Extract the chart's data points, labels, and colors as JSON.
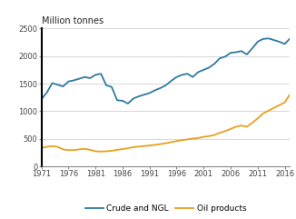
{
  "title": "Million tonnes",
  "xlim": [
    1971,
    2017
  ],
  "ylim": [
    0,
    2500
  ],
  "yticks": [
    0,
    500,
    1000,
    1500,
    2000,
    2500
  ],
  "xticks": [
    1971,
    1976,
    1981,
    1986,
    1991,
    1996,
    2001,
    2006,
    2011,
    2016
  ],
  "crude_color": "#2e7b9e",
  "oil_color": "#e8a020",
  "bg_color": "#ffffff",
  "grid_color": "#c8c8c8",
  "crude_label": "Crude and NGL",
  "oil_label": "Oil products",
  "crude_years": [
    1971,
    1972,
    1973,
    1974,
    1975,
    1976,
    1977,
    1978,
    1979,
    1980,
    1981,
    1982,
    1983,
    1984,
    1985,
    1986,
    1987,
    1988,
    1989,
    1990,
    1991,
    1992,
    1993,
    1994,
    1995,
    1996,
    1997,
    1998,
    1999,
    2000,
    2001,
    2002,
    2003,
    2004,
    2005,
    2006,
    2007,
    2008,
    2009,
    2010,
    2011,
    2012,
    2013,
    2014,
    2015,
    2016,
    2017
  ],
  "crude_values": [
    1220,
    1340,
    1510,
    1480,
    1450,
    1540,
    1560,
    1590,
    1620,
    1600,
    1660,
    1680,
    1470,
    1440,
    1200,
    1190,
    1140,
    1230,
    1270,
    1300,
    1330,
    1380,
    1420,
    1470,
    1550,
    1620,
    1660,
    1680,
    1620,
    1710,
    1750,
    1790,
    1860,
    1960,
    1990,
    2060,
    2070,
    2090,
    2030,
    2140,
    2260,
    2310,
    2320,
    2290,
    2260,
    2220,
    2320
  ],
  "oil_years": [
    1971,
    1972,
    1973,
    1974,
    1975,
    1976,
    1977,
    1978,
    1979,
    1980,
    1981,
    1982,
    1983,
    1984,
    1985,
    1986,
    1987,
    1988,
    1989,
    1990,
    1991,
    1992,
    1993,
    1994,
    1995,
    1996,
    1997,
    1998,
    1999,
    2000,
    2001,
    2002,
    2003,
    2004,
    2005,
    2006,
    2007,
    2008,
    2009,
    2010,
    2011,
    2012,
    2013,
    2014,
    2015,
    2016,
    2017
  ],
  "oil_values": [
    340,
    355,
    370,
    355,
    310,
    295,
    295,
    310,
    320,
    300,
    275,
    270,
    275,
    285,
    300,
    315,
    330,
    350,
    360,
    370,
    380,
    390,
    405,
    420,
    440,
    460,
    475,
    490,
    505,
    515,
    535,
    550,
    570,
    610,
    640,
    680,
    720,
    740,
    720,
    790,
    870,
    960,
    1010,
    1060,
    1110,
    1160,
    1310
  ]
}
